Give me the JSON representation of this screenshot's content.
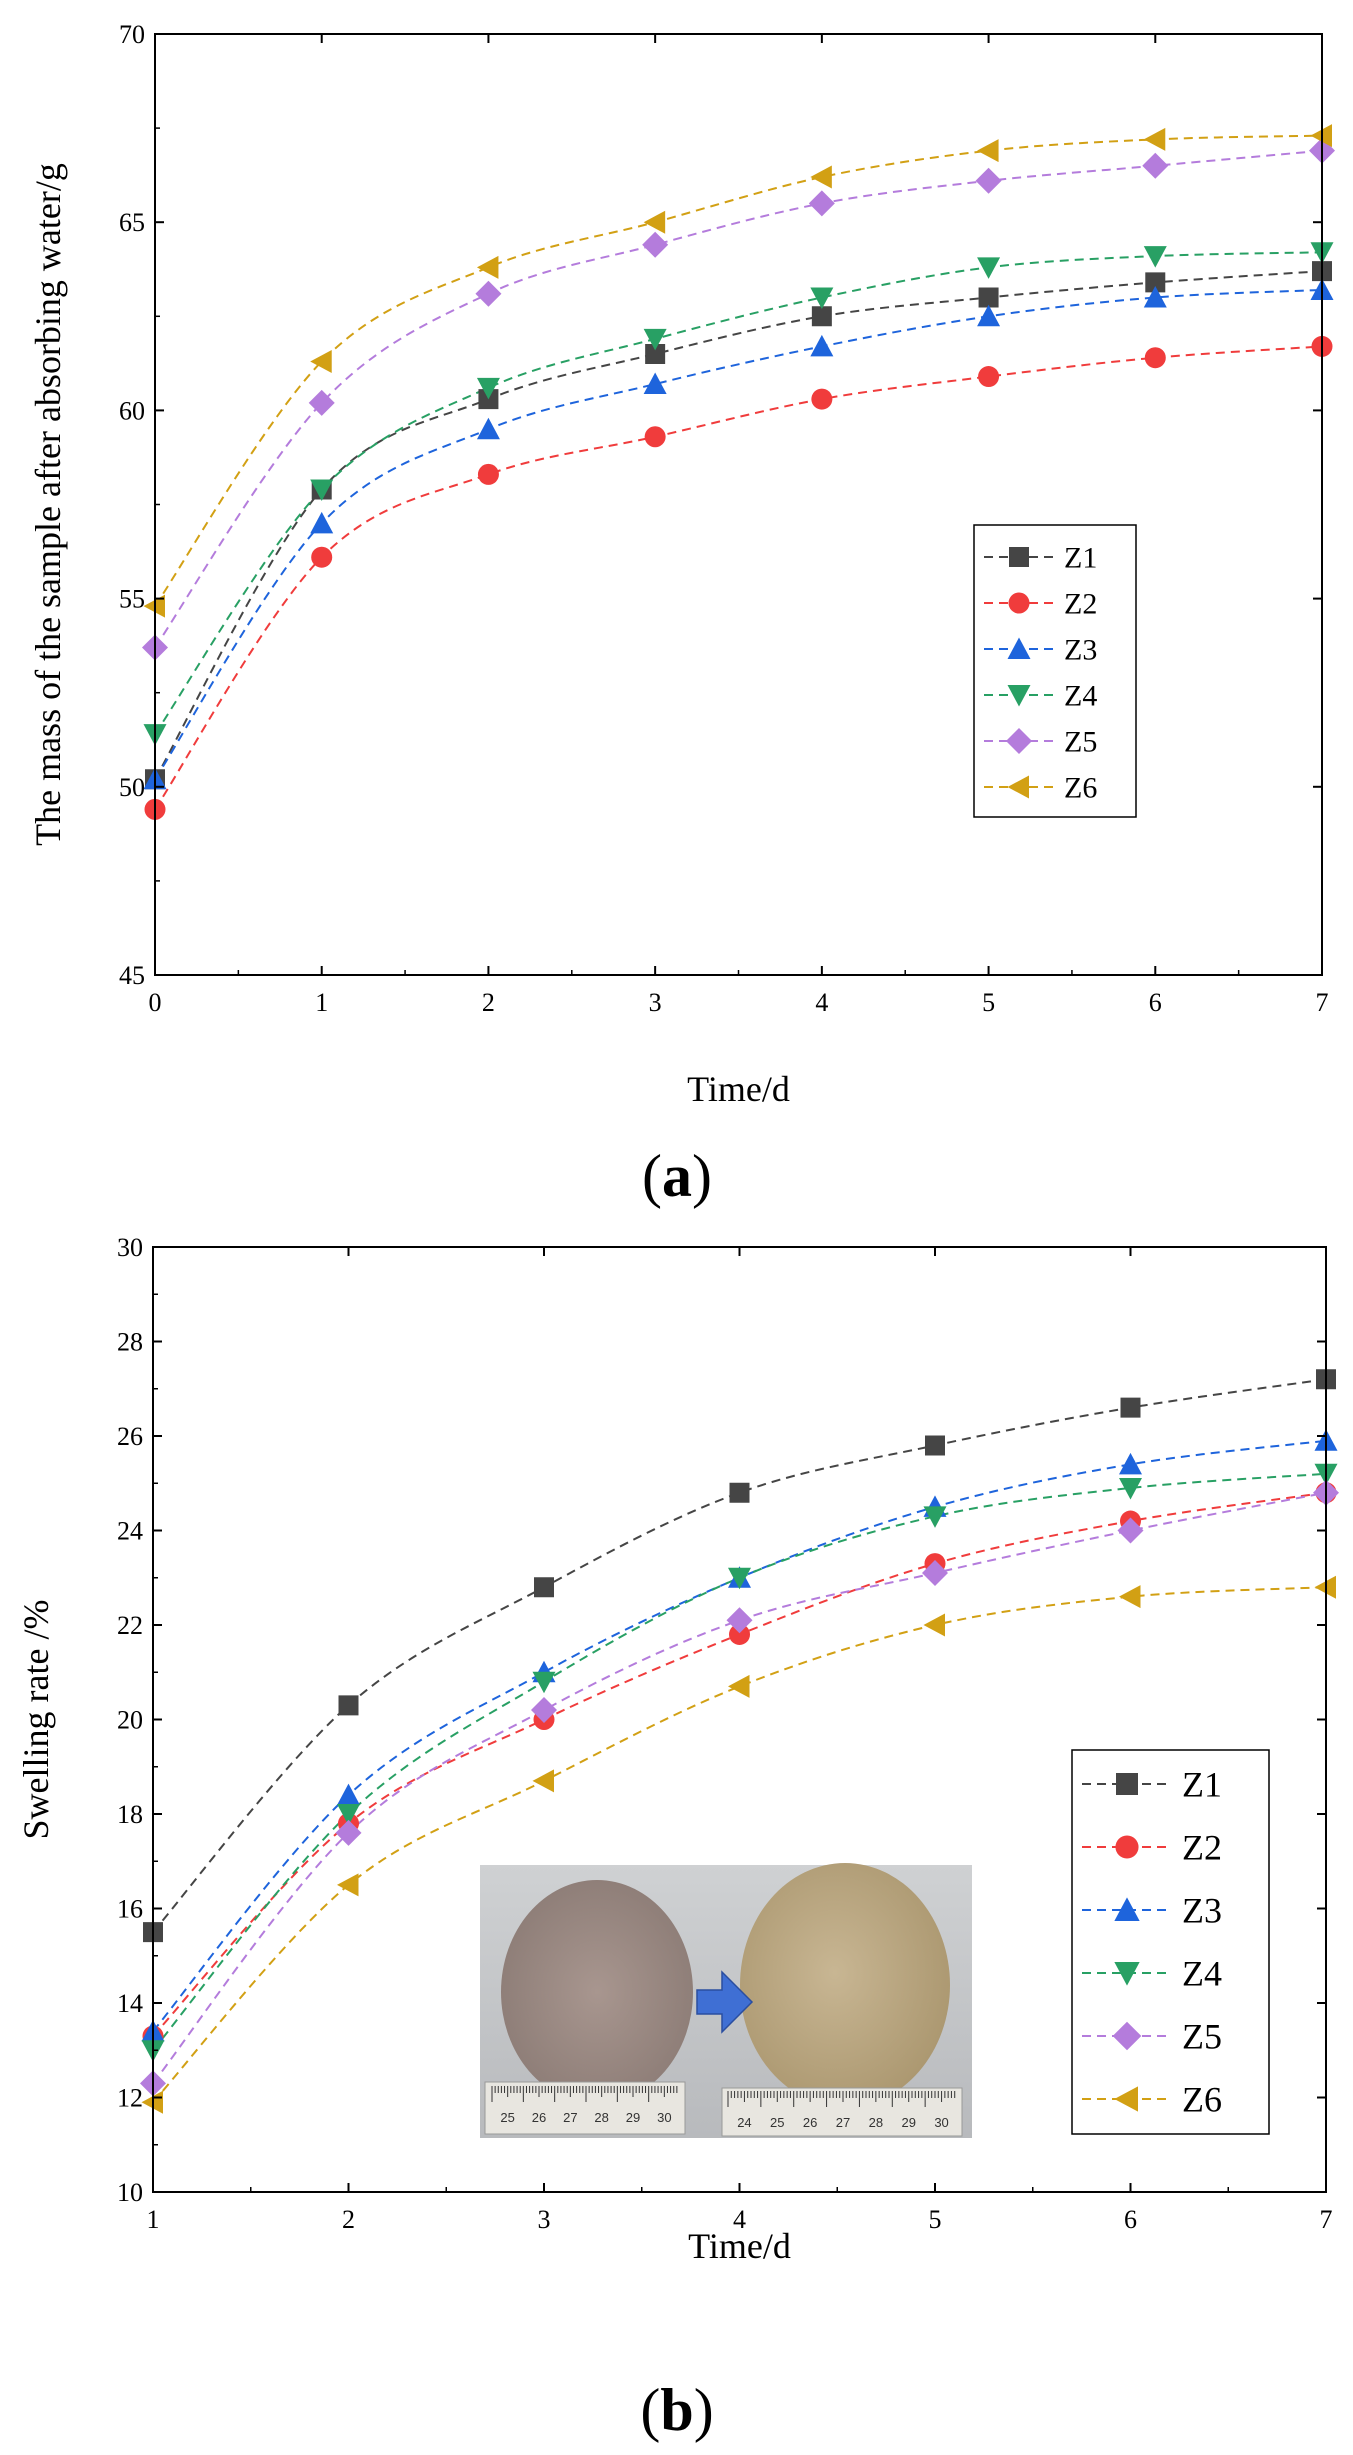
{
  "figure": {
    "panels": [
      {
        "label_open": "(",
        "label_letter": "a",
        "label_close": ")"
      },
      {
        "label_open": "(",
        "label_letter": "b",
        "label_close": ")"
      }
    ]
  },
  "chart_data": [
    {
      "type": "line",
      "panel": "a",
      "xlabel": "Time/d",
      "ylabel": "The mass of the sample after absorbing water/g",
      "xlim": [
        0,
        7
      ],
      "ylim": [
        45,
        70
      ],
      "xticks": [
        0,
        1,
        2,
        3,
        4,
        5,
        6,
        7
      ],
      "yticks": [
        45,
        50,
        55,
        60,
        65,
        70
      ],
      "x": [
        0,
        1,
        2,
        3,
        4,
        5,
        6,
        7
      ],
      "grid": false,
      "legend": "center-right",
      "series": [
        {
          "name": "Z1",
          "color": "#454545",
          "marker": "square",
          "values": [
            50.2,
            57.9,
            60.3,
            61.5,
            62.5,
            63.0,
            63.4,
            63.7
          ]
        },
        {
          "name": "Z2",
          "color": "#f03c3c",
          "marker": "circle",
          "values": [
            49.4,
            56.1,
            58.3,
            59.3,
            60.3,
            60.9,
            61.4,
            61.7
          ]
        },
        {
          "name": "Z3",
          "color": "#1e64dc",
          "marker": "triangle-up",
          "values": [
            50.2,
            57.0,
            59.5,
            60.7,
            61.7,
            62.5,
            63.0,
            63.2
          ]
        },
        {
          "name": "Z4",
          "color": "#28a064",
          "marker": "triangle-down",
          "values": [
            51.4,
            57.9,
            60.6,
            61.9,
            63.0,
            63.8,
            64.1,
            64.2
          ]
        },
        {
          "name": "Z5",
          "color": "#b47cdc",
          "marker": "diamond",
          "values": [
            53.7,
            60.2,
            63.1,
            64.4,
            65.5,
            66.1,
            66.5,
            66.9
          ]
        },
        {
          "name": "Z6",
          "color": "#d2a014",
          "marker": "triangle-left",
          "values": [
            54.8,
            61.3,
            63.8,
            65.0,
            66.2,
            66.9,
            67.2,
            67.3
          ]
        }
      ]
    },
    {
      "type": "line",
      "panel": "b",
      "xlabel": "Time/d",
      "ylabel": "Swelling rate /%",
      "xlim": [
        1,
        7
      ],
      "ylim": [
        10,
        30
      ],
      "xticks": [
        1,
        2,
        3,
        4,
        5,
        6,
        7
      ],
      "yticks": [
        10,
        12,
        14,
        16,
        18,
        20,
        22,
        24,
        26,
        28,
        30
      ],
      "x": [
        1,
        2,
        3,
        4,
        5,
        6,
        7
      ],
      "grid": false,
      "legend": "bottom-right",
      "series": [
        {
          "name": "Z1",
          "color": "#454545",
          "marker": "square",
          "values": [
            15.5,
            20.3,
            22.8,
            24.8,
            25.8,
            26.6,
            27.2
          ]
        },
        {
          "name": "Z2",
          "color": "#f03c3c",
          "marker": "circle",
          "values": [
            13.3,
            17.8,
            20.0,
            21.8,
            23.3,
            24.2,
            24.8
          ]
        },
        {
          "name": "Z3",
          "color": "#1e64dc",
          "marker": "triangle-up",
          "values": [
            13.4,
            18.4,
            21.0,
            23.0,
            24.5,
            25.4,
            25.9
          ]
        },
        {
          "name": "Z4",
          "color": "#28a064",
          "marker": "triangle-down",
          "values": [
            13.0,
            18.0,
            20.8,
            23.0,
            24.3,
            24.9,
            25.2
          ]
        },
        {
          "name": "Z5",
          "color": "#b47cdc",
          "marker": "diamond",
          "values": [
            12.3,
            17.6,
            20.2,
            22.1,
            23.1,
            24.0,
            24.8
          ]
        },
        {
          "name": "Z6",
          "color": "#d2a014",
          "marker": "triangle-left",
          "values": [
            11.9,
            16.5,
            18.7,
            20.7,
            22.0,
            22.6,
            22.8
          ]
        }
      ],
      "inset": {
        "ruler_labels_left": [
          "25",
          "26",
          "27",
          "28",
          "29",
          "30"
        ],
        "ruler_labels_right": [
          "24",
          "25",
          "26",
          "27",
          "28",
          "29",
          "30"
        ]
      }
    }
  ]
}
